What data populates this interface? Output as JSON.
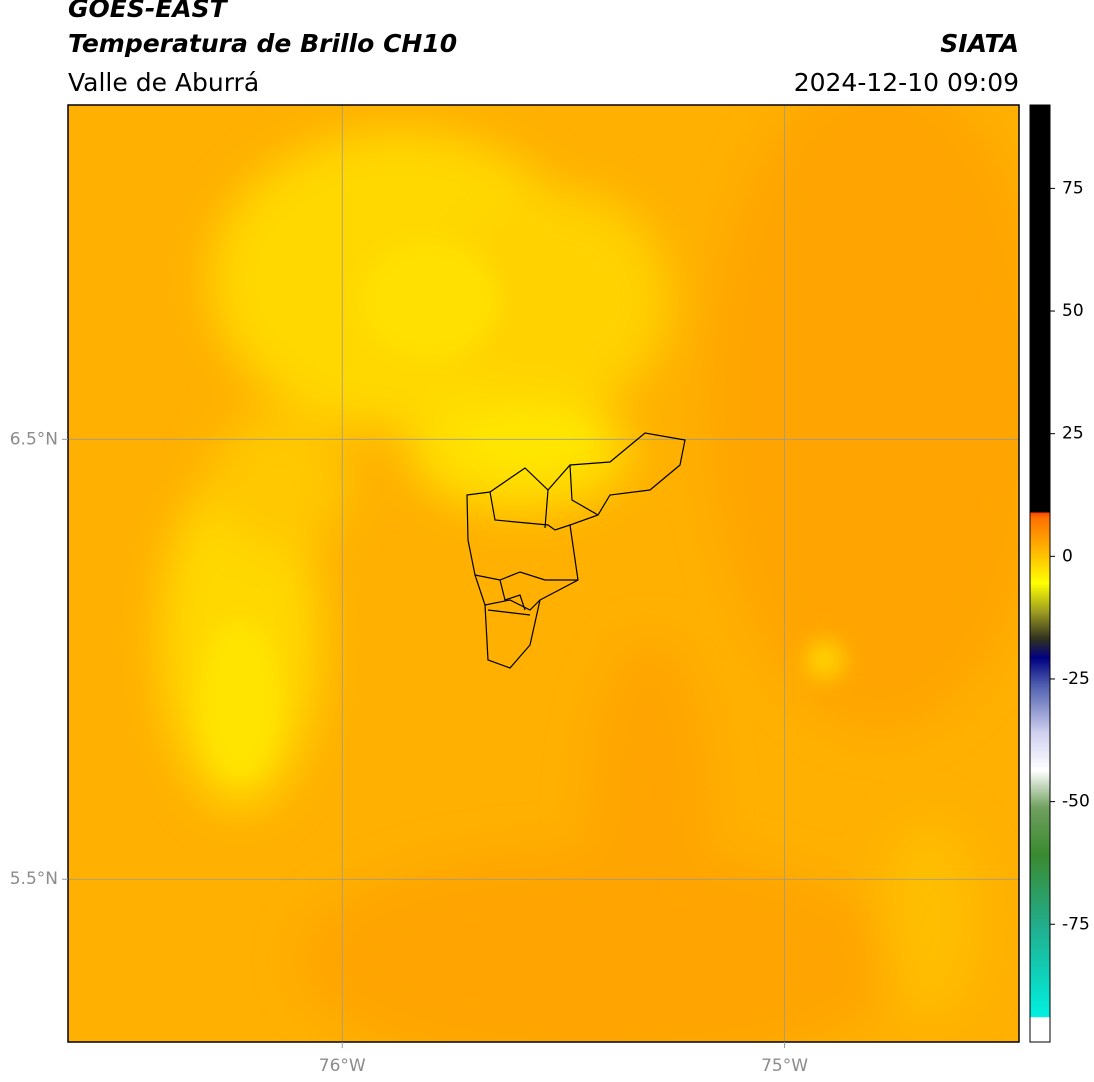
{
  "header": {
    "title": "GOES-EAST",
    "subtitle": "Temperatura de Brillo CH10",
    "region": "Valle de Aburrá",
    "source": "SIATA",
    "datetime": "2024-12-10 09:09"
  },
  "map": {
    "xlim": [
      -76.62,
      -74.47
    ],
    "ylim": [
      5.13,
      7.26
    ],
    "xticks": [
      {
        "value": -76,
        "label": "76°W"
      },
      {
        "value": -75,
        "label": "75°W"
      }
    ],
    "yticks": [
      {
        "value": 6.5,
        "label": "6.5°N"
      },
      {
        "value": 5.5,
        "label": "5.5°N"
      }
    ],
    "grid": true
  },
  "colorbar": {
    "lim": [
      -99,
      92
    ],
    "ticks": [
      75,
      50,
      25,
      0,
      -25,
      -50,
      -75
    ]
  }
}
